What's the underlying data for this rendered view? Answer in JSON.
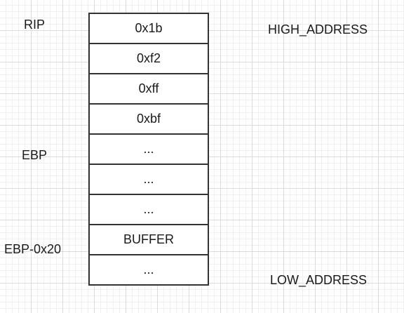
{
  "stack": {
    "cells": [
      "0x1b",
      "0xf2",
      "0xff",
      "0xbf",
      "...",
      "...",
      "...",
      "BUFFER",
      "..."
    ]
  },
  "labels": {
    "rip": "RIP",
    "ebp": "EBP",
    "ebp_minus_0x20": "EBP-0x20",
    "high_address": "HIGH_ADDRESS",
    "low_address": "LOW_ADDRESS"
  }
}
